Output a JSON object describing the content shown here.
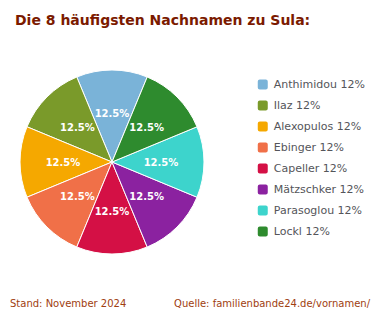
{
  "chart_data": {
    "type": "pie",
    "title": "Die 8 häufigsten Nachnamen zu Sula:",
    "categories": [
      "Anthimidou 12%",
      "Ilaz 12%",
      "Alexopulos 12%",
      "Ebinger 12%",
      "Capeller 12%",
      "Mätzschker 12%",
      "Parasoglou 12%",
      "Lockl 12%"
    ],
    "values": [
      12.5,
      12.5,
      12.5,
      12.5,
      12.5,
      12.5,
      12.5,
      12.5
    ],
    "value_labels": [
      "12.5%",
      "12.5%",
      "12.5%",
      "12.5%",
      "12.5%",
      "12.5%",
      "12.5%",
      "12.5%"
    ],
    "colors": [
      "#7ab3d8",
      "#7a9a2a",
      "#f5a800",
      "#f07048",
      "#d41045",
      "#8b22a0",
      "#3dd4cc",
      "#2e8b2e"
    ],
    "data_labels": true,
    "legend": "right",
    "annotations": [
      "Stand: November 2024",
      "Quelle: familienbande24.de/vornamen/"
    ]
  }
}
